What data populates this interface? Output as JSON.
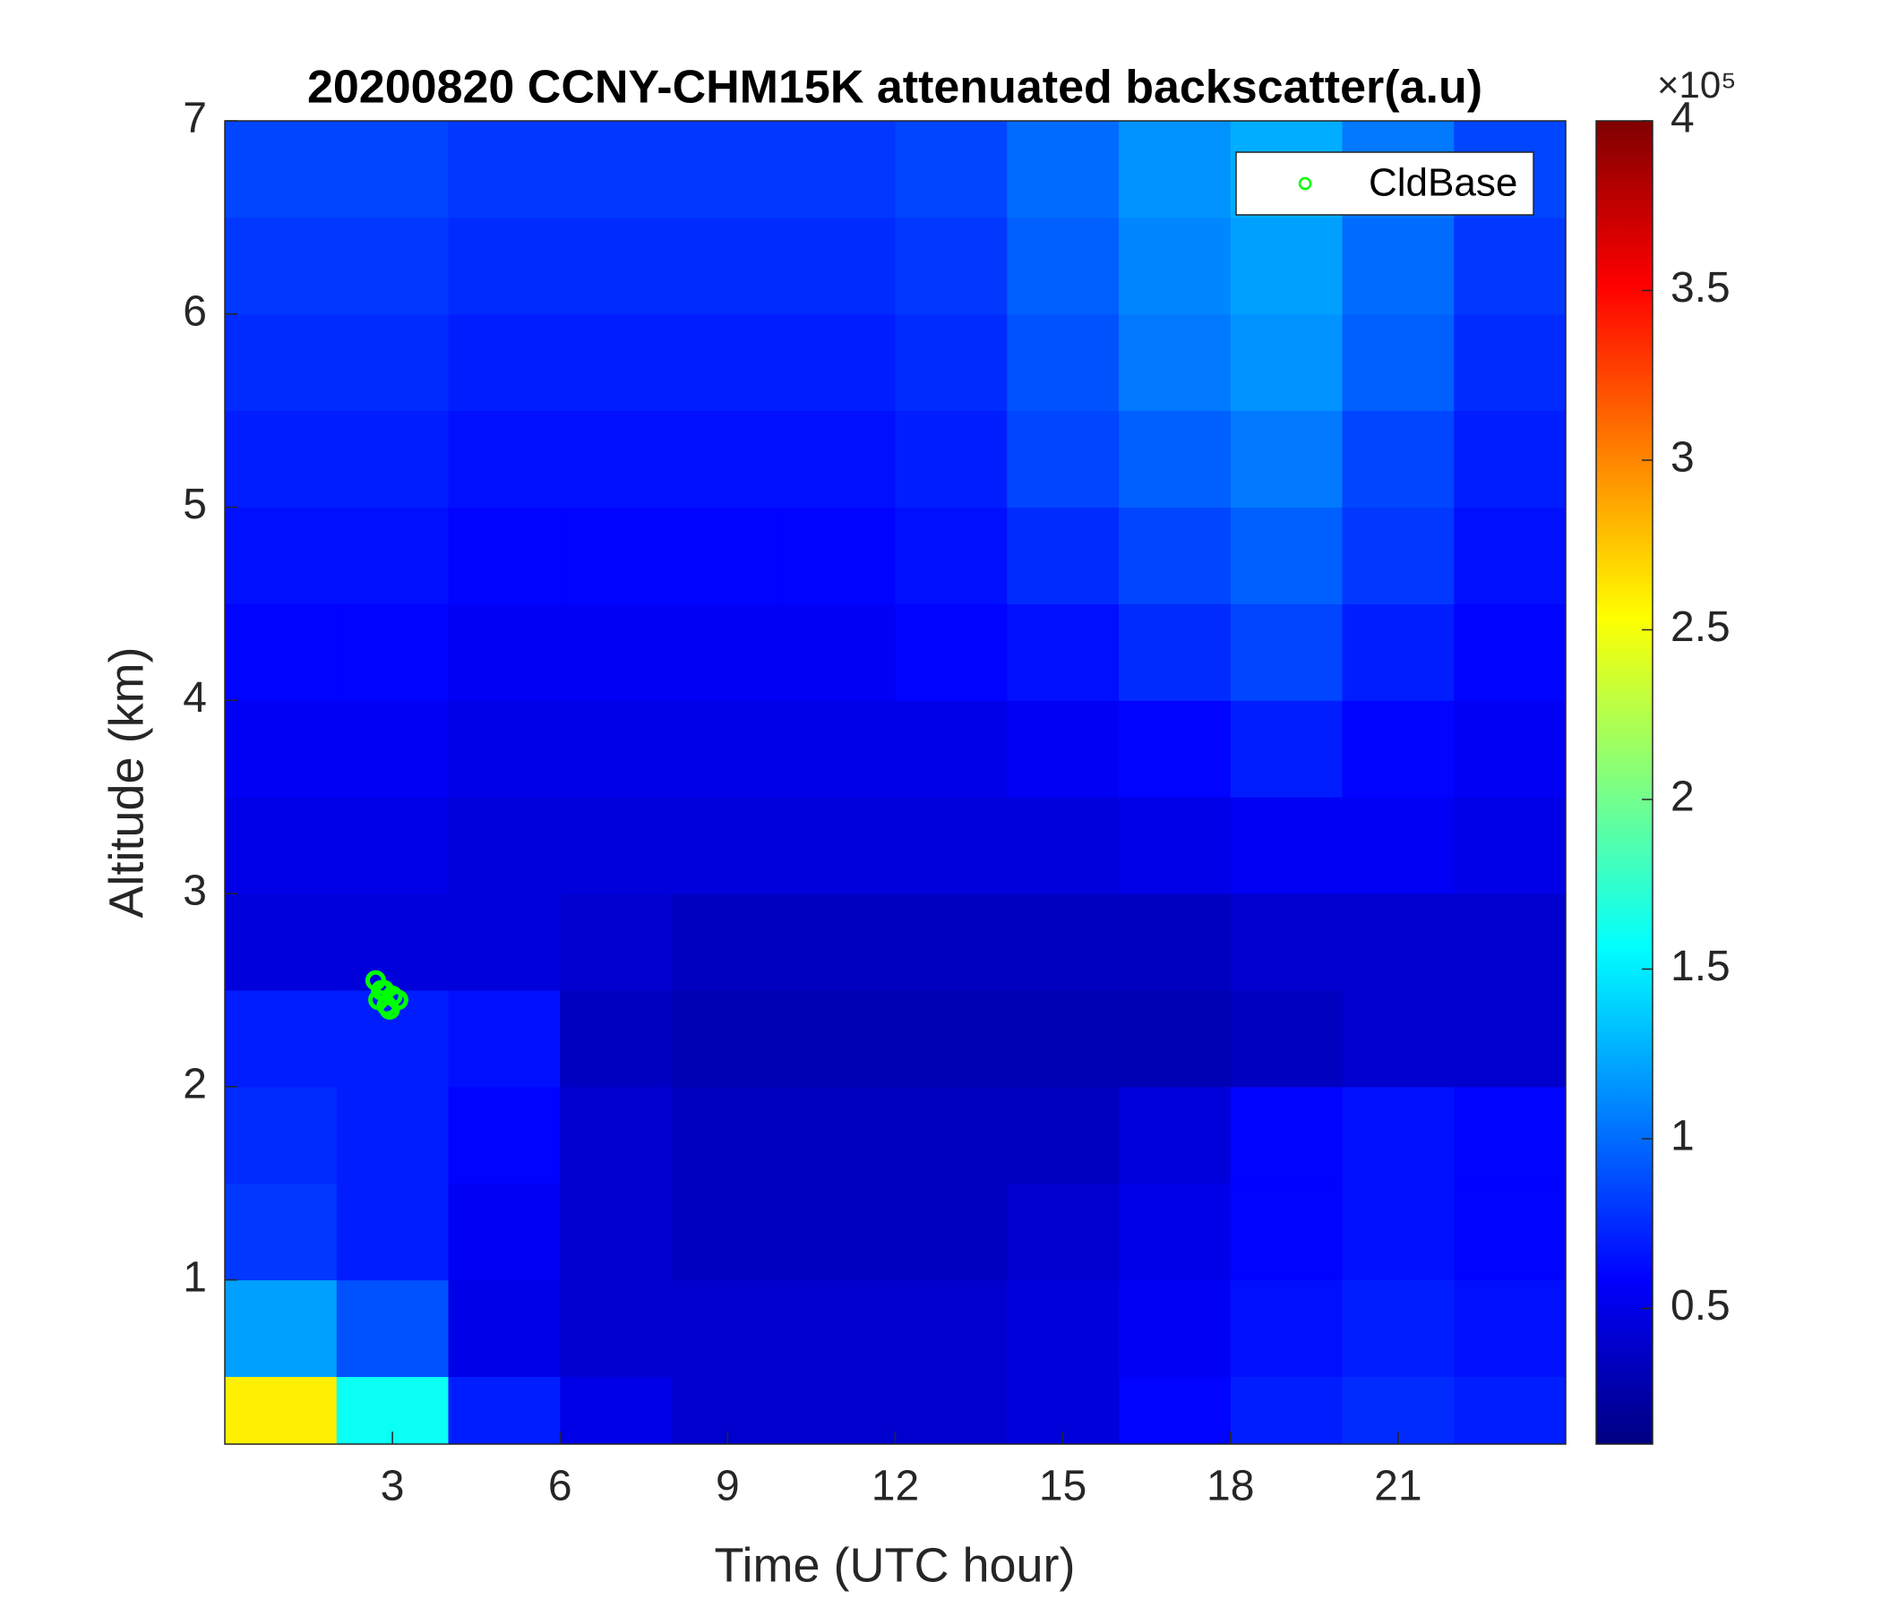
{
  "chart_data": {
    "type": "heatmap",
    "title": "20200820 CCNY-CHM15K attenuated backscatter(a.u)",
    "x_label": "Time (UTC hour)",
    "y_label": "Altitude (km)",
    "xlim": [
      0,
      24
    ],
    "ylim": [
      0.15,
      7
    ],
    "xticks": [
      3,
      6,
      9,
      12,
      15,
      18,
      21
    ],
    "yticks": [
      1,
      2,
      3,
      4,
      5,
      6,
      7
    ],
    "x": [
      1,
      3,
      5,
      7,
      9,
      11,
      13,
      15,
      17,
      19,
      21,
      23
    ],
    "y": [
      0.25,
      0.75,
      1.25,
      1.75,
      2.25,
      2.75,
      3.25,
      3.75,
      4.25,
      4.75,
      5.25,
      5.75,
      6.25,
      6.75
    ],
    "z": [
      [
        2.6,
        1.6,
        0.7,
        0.5,
        0.4,
        0.4,
        0.4,
        0.45,
        0.6,
        0.7,
        0.75,
        0.7
      ],
      [
        1.2,
        0.9,
        0.5,
        0.4,
        0.4,
        0.4,
        0.4,
        0.45,
        0.55,
        0.65,
        0.7,
        0.65
      ],
      [
        0.8,
        0.7,
        0.55,
        0.4,
        0.35,
        0.35,
        0.35,
        0.4,
        0.5,
        0.6,
        0.65,
        0.6
      ],
      [
        0.75,
        0.7,
        0.6,
        0.4,
        0.35,
        0.35,
        0.35,
        0.35,
        0.45,
        0.6,
        0.65,
        0.6
      ],
      [
        0.7,
        0.7,
        0.65,
        0.35,
        0.3,
        0.3,
        0.3,
        0.3,
        0.3,
        0.35,
        0.4,
        0.4
      ],
      [
        0.45,
        0.45,
        0.45,
        0.4,
        0.35,
        0.35,
        0.35,
        0.35,
        0.35,
        0.4,
        0.4,
        0.4
      ],
      [
        0.5,
        0.5,
        0.45,
        0.45,
        0.45,
        0.45,
        0.45,
        0.45,
        0.5,
        0.55,
        0.55,
        0.5
      ],
      [
        0.55,
        0.55,
        0.5,
        0.5,
        0.5,
        0.5,
        0.5,
        0.55,
        0.6,
        0.7,
        0.6,
        0.55
      ],
      [
        0.6,
        0.6,
        0.55,
        0.55,
        0.55,
        0.55,
        0.6,
        0.65,
        0.75,
        0.85,
        0.7,
        0.6
      ],
      [
        0.65,
        0.65,
        0.6,
        0.6,
        0.6,
        0.6,
        0.65,
        0.75,
        0.85,
        0.95,
        0.8,
        0.65
      ],
      [
        0.7,
        0.7,
        0.65,
        0.65,
        0.65,
        0.65,
        0.7,
        0.85,
        0.95,
        1.05,
        0.85,
        0.7
      ],
      [
        0.75,
        0.75,
        0.7,
        0.7,
        0.7,
        0.7,
        0.75,
        0.9,
        1.05,
        1.15,
        0.95,
        0.75
      ],
      [
        0.8,
        0.8,
        0.75,
        0.75,
        0.75,
        0.75,
        0.8,
        0.95,
        1.1,
        1.2,
        1.0,
        0.8
      ],
      [
        0.85,
        0.85,
        0.8,
        0.8,
        0.8,
        0.8,
        0.85,
        1.0,
        1.15,
        1.25,
        1.05,
        0.85
      ]
    ],
    "colormap": "jet",
    "clim": [
      0.1,
      4
    ],
    "cticks": [
      0.5,
      1,
      1.5,
      2,
      2.5,
      3,
      3.5,
      4
    ],
    "colorbar_exponent": "×10⁵",
    "series": [
      {
        "name": "CldBase",
        "type": "scatter",
        "color": "#00ff00",
        "x": [
          2.7,
          2.75,
          2.8,
          2.9,
          3.0,
          3.1,
          2.85,
          2.95
        ],
        "values": [
          2.55,
          2.45,
          2.5,
          2.42,
          2.47,
          2.45,
          2.5,
          2.4
        ]
      }
    ],
    "legend": "upper right"
  }
}
